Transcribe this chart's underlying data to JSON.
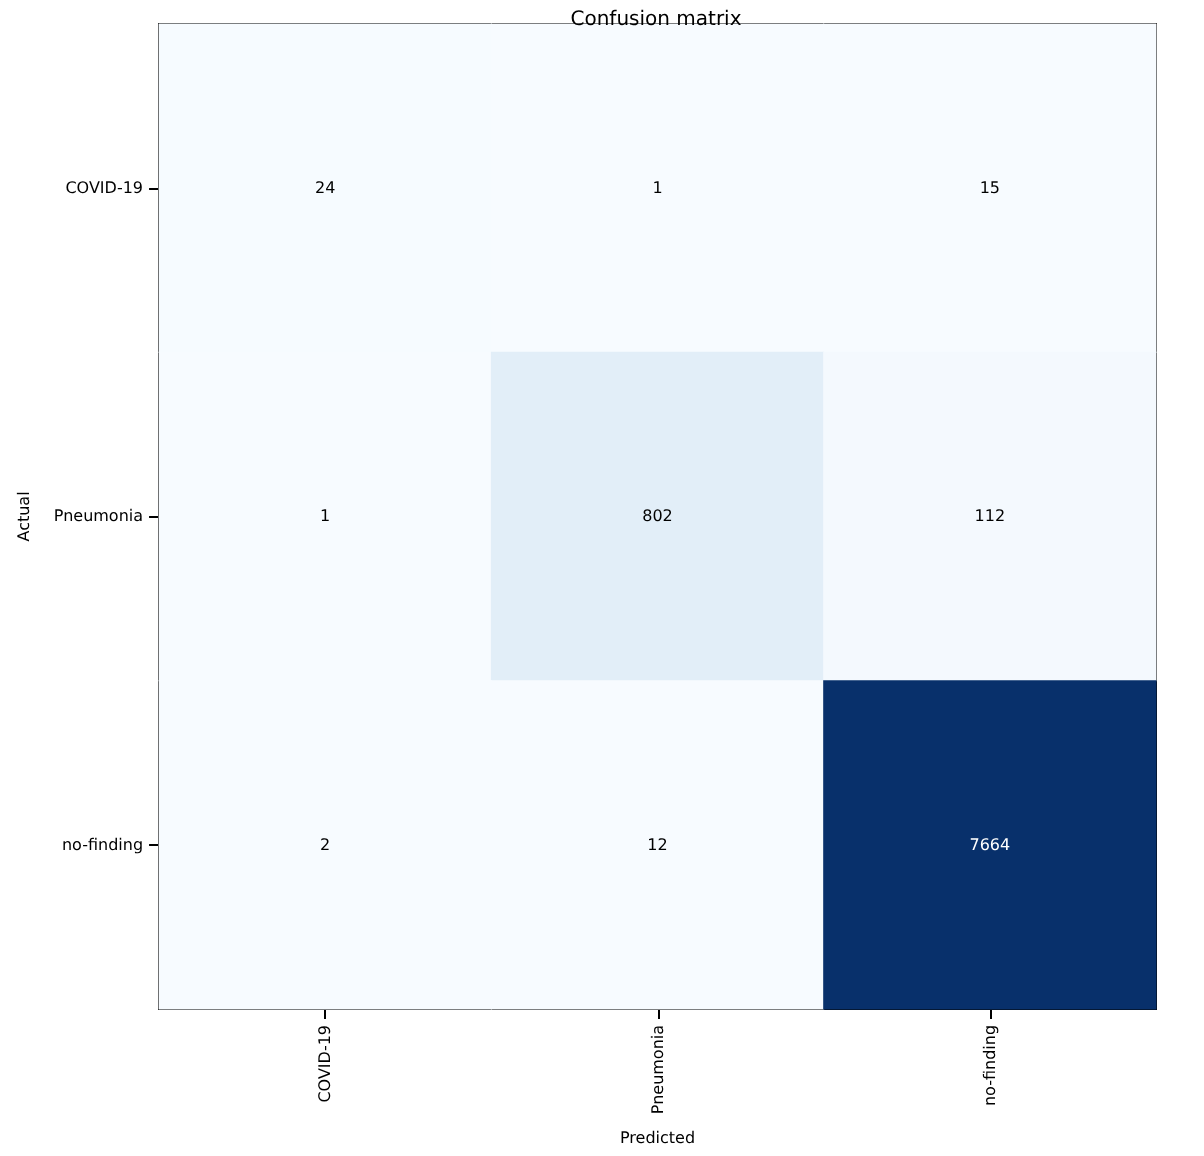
{
  "chart_data": {
    "type": "heatmap",
    "title": "Confusion matrix",
    "xlabel": "Predicted",
    "data_labels": true,
    "ylabel": "Actual",
    "categories": [
      "COVID-19",
      "Pneumonia",
      "no-finding"
    ],
    "y_categories": [
      "COVID-19",
      "Pneumonia",
      "no-finding"
    ],
    "cells": [
      [
        24,
        1,
        15
      ],
      [
        1,
        802,
        112
      ],
      [
        2,
        12,
        7664
      ]
    ]
  }
}
